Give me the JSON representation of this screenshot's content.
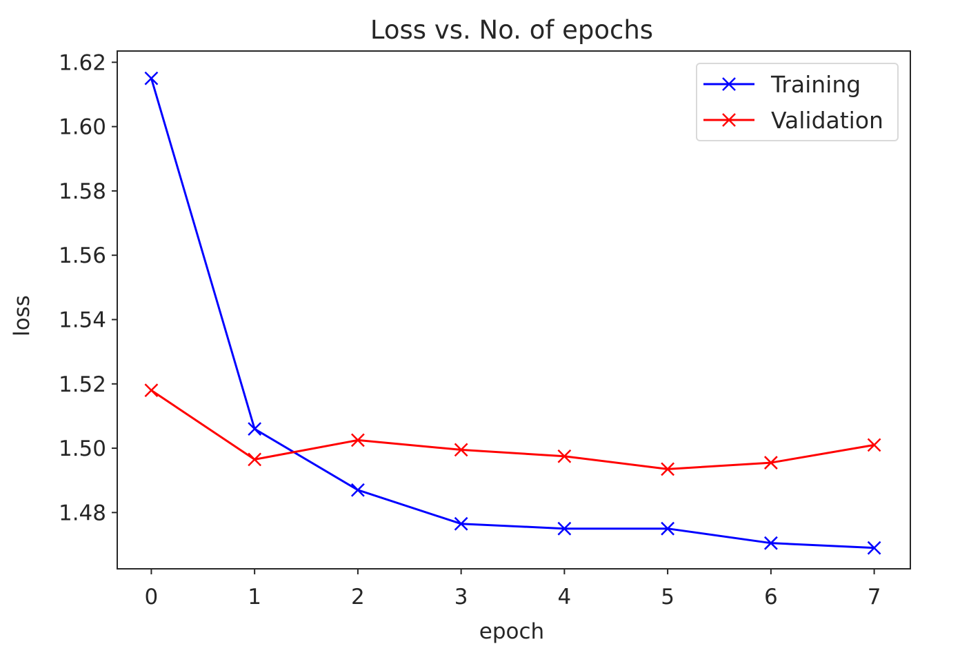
{
  "chart_data": {
    "type": "line",
    "title": "Loss vs. No. of epochs",
    "xlabel": "epoch",
    "ylabel": "loss",
    "x": [
      0,
      1,
      2,
      3,
      4,
      5,
      6,
      7
    ],
    "xlim": [
      -0.33,
      7.35
    ],
    "ylim": [
      1.4625,
      1.6235
    ],
    "xticks": [
      0,
      1,
      2,
      3,
      4,
      5,
      6,
      7
    ],
    "yticks": [
      1.48,
      1.5,
      1.52,
      1.54,
      1.56,
      1.58,
      1.6,
      1.62
    ],
    "ytick_labels": [
      "1.48",
      "1.50",
      "1.52",
      "1.54",
      "1.56",
      "1.58",
      "1.60",
      "1.62"
    ],
    "grid": false,
    "legend_position": "top-right",
    "series": [
      {
        "name": "Training",
        "color": "#0000ff",
        "marker": "x",
        "values": [
          1.615,
          1.506,
          1.487,
          1.4765,
          1.475,
          1.475,
          1.4705,
          1.469
        ]
      },
      {
        "name": "Validation",
        "color": "#ff0000",
        "marker": "x",
        "values": [
          1.518,
          1.4965,
          1.5025,
          1.4995,
          1.4975,
          1.4935,
          1.4955,
          1.501
        ]
      }
    ]
  }
}
